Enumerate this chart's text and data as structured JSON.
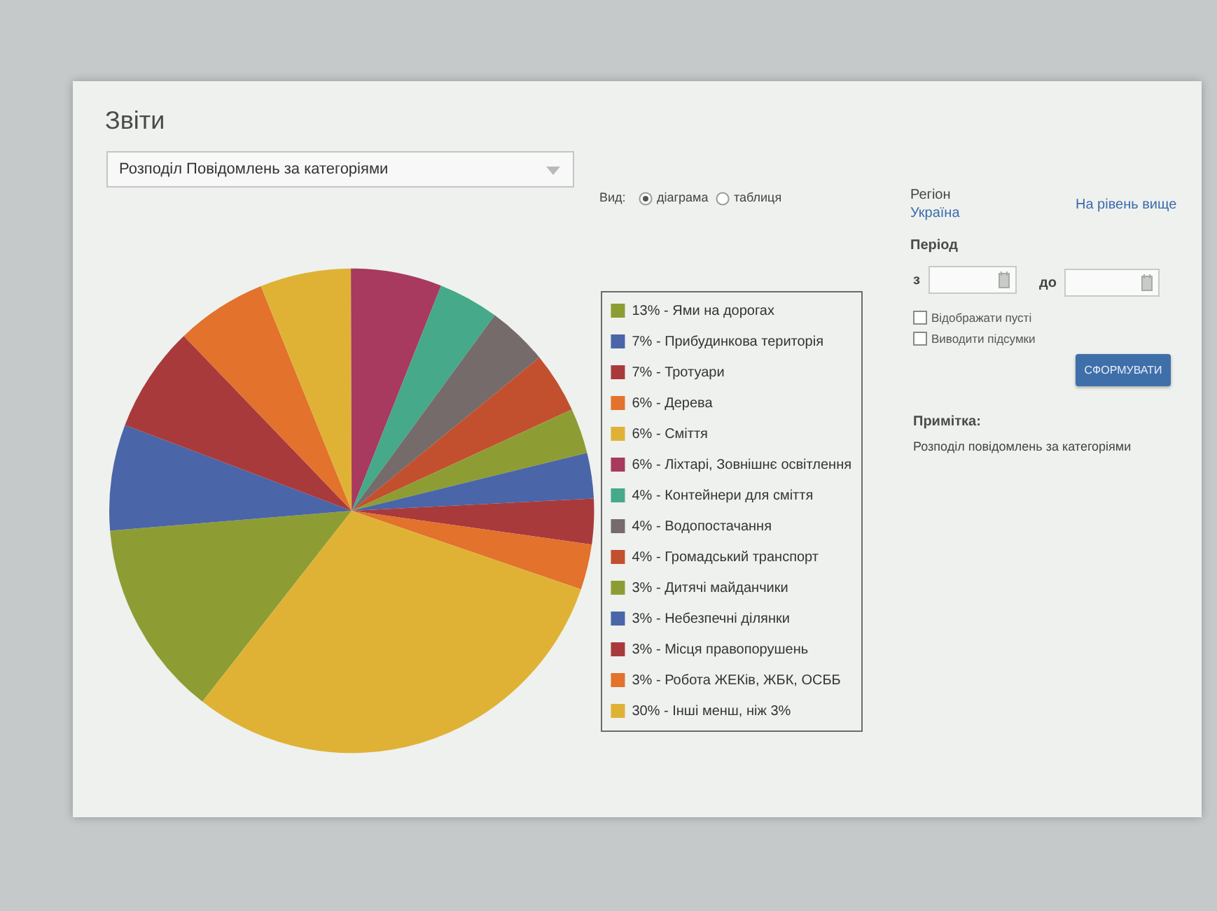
{
  "chart_data": {
    "type": "pie",
    "title": "Звіти",
    "subtitle": "Розподіл Повідомлень за категоріями",
    "categories": [
      "13% - Ями на дорогах",
      "7% - Прибудинкова територія",
      "7% - Тротуари",
      "6% - Дерева",
      "6% - Сміття",
      "6% - Ліхтарі, Зовнішнє освітлення",
      "4% - Контейнери для сміття",
      "4% - Водопостачання",
      "4% - Громадський транспорт",
      "3% - Дитячі майданчики",
      "3% - Небезпечні ділянки",
      "3% - Місця правопорушень",
      "3% - Робота ЖЕКів, ЖБК, ОСББ",
      "30% - Інші менш, ніж 3%"
    ],
    "values": [
      13,
      7,
      7,
      6,
      6,
      6,
      4,
      4,
      4,
      3,
      3,
      3,
      3,
      30
    ],
    "colors": [
      "#8e9d33",
      "#4a65a8",
      "#a93a3c",
      "#e2722c",
      "#dfb236",
      "#a8395f",
      "#46a98a",
      "#756b6b",
      "#c2502f",
      "#8e9d33",
      "#4a65a8",
      "#a93a3c",
      "#e2722c",
      "#dfb236"
    ],
    "legend": "right",
    "annotations": [
      "Вид:",
      "діаграма",
      "таблиця",
      "Регіон",
      "Україна",
      "На рівень вище",
      "Період",
      "з",
      "до",
      "Відображати пусті",
      "Виводити підсумки",
      "СФОРМУВАТИ",
      "Примітка:",
      "Розподіл повідомлень за категоріями"
    ]
  }
}
